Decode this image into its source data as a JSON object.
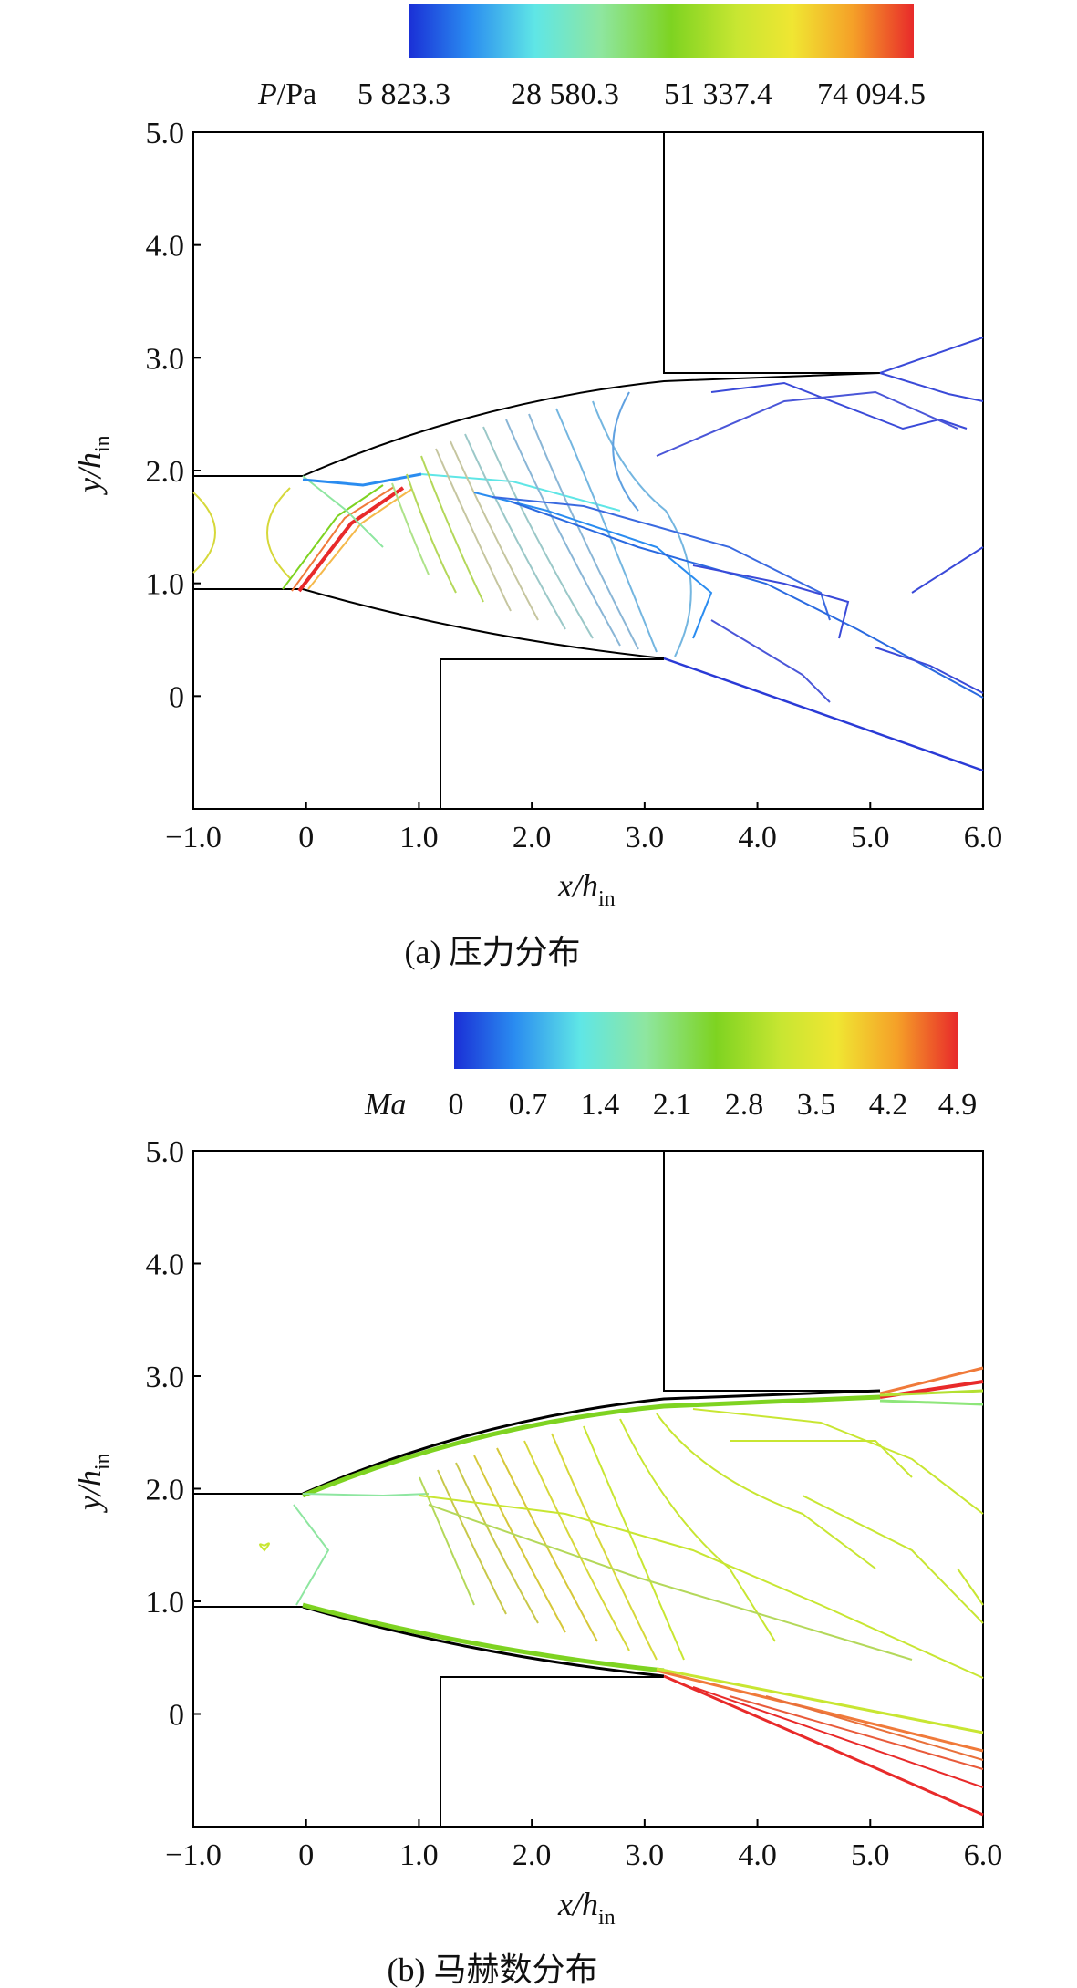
{
  "chart_data": [
    {
      "type": "contour",
      "caption": "(a) 压力分布",
      "xlabel": "x/h",
      "xlabel_sub": "in",
      "ylabel": "y/h",
      "ylabel_sub": "in",
      "xlim": [
        -1.0,
        6.0
      ],
      "ylim": [
        -1.0,
        5.0
      ],
      "xticks": [
        "−1.0",
        "0",
        "1.0",
        "2.0",
        "3.0",
        "4.0",
        "5.0",
        "6.0"
      ],
      "xtick_values": [
        -1,
        0,
        1,
        2,
        3,
        4,
        5,
        6
      ],
      "yticks": [
        "0",
        "1.0",
        "2.0",
        "3.0",
        "4.0",
        "5.0"
      ],
      "ytick_values": [
        0,
        1,
        2,
        3,
        4,
        5
      ],
      "colorbar": {
        "variable": "P",
        "unit": "/Pa",
        "labels": [
          "5 823.3",
          "28 580.3",
          "51 337.4",
          "74 094.5"
        ],
        "range": [
          5823.3,
          74094.5
        ]
      },
      "geometry": {
        "inlet_upper_y": 1.97,
        "inlet_lower_y": 0.97,
        "upper_block": {
          "x": 3.12,
          "y_bottom": 2.9
        },
        "lower_block": {
          "x": 1.2,
          "y_top": 0.35
        }
      }
    },
    {
      "type": "contour",
      "caption": "(b) 马赫数分布",
      "xlabel": "x/h",
      "xlabel_sub": "in",
      "ylabel": "y/h",
      "ylabel_sub": "in",
      "xlim": [
        -1.0,
        6.0
      ],
      "ylim": [
        -1.0,
        5.0
      ],
      "xticks": [
        "−1.0",
        "0",
        "1.0",
        "2.0",
        "3.0",
        "4.0",
        "5.0",
        "6.0"
      ],
      "xtick_values": [
        -1,
        0,
        1,
        2,
        3,
        4,
        5,
        6
      ],
      "yticks": [
        "0",
        "1.0",
        "2.0",
        "3.0",
        "4.0",
        "5.0"
      ],
      "ytick_values": [
        0,
        1,
        2,
        3,
        4,
        5
      ],
      "colorbar": {
        "variable": "Ma",
        "unit": "",
        "labels": [
          "0",
          "0.7",
          "1.4",
          "2.1",
          "2.8",
          "3.5",
          "4.2",
          "4.9"
        ],
        "range": [
          0,
          4.9
        ]
      },
      "geometry": {
        "inlet_upper_y": 1.97,
        "inlet_lower_y": 0.97,
        "upper_block": {
          "x": 3.12,
          "y_bottom": 2.9
        },
        "lower_block": {
          "x": 1.2,
          "y_top": 0.35
        }
      }
    }
  ],
  "colors": {
    "colormap": [
      "#1a2fd6",
      "#2a8cf0",
      "#5fe6e6",
      "#8ee6a0",
      "#7ed321",
      "#c8e632",
      "#f0e632",
      "#f5a028",
      "#e82a2a"
    ],
    "wall": "#000000"
  }
}
